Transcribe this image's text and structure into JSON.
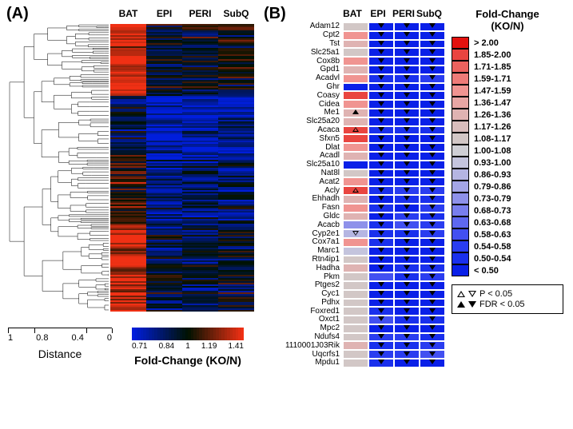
{
  "panel_labels": {
    "A": "(A)",
    "B": "(B)"
  },
  "panelA": {
    "columns": [
      "BAT",
      "EPI",
      "PERI",
      "SubQ"
    ],
    "heatmap_rows": 180,
    "colorscale": {
      "ticks": [
        "0.71",
        "0.84",
        "1",
        "1.19",
        "1.41"
      ],
      "colors": [
        "#0012c1",
        "#0034d8",
        "#0b0b5e",
        "#000000",
        "#530909",
        "#c21414",
        "#f03030"
      ],
      "label": "Fold-Change (KO/N)"
    },
    "distance": {
      "ticks": [
        "1",
        "0.8",
        "0.4",
        "0"
      ],
      "label": "Distance"
    }
  },
  "panelB": {
    "columns": [
      "BAT",
      "EPI",
      "PERI",
      "SubQ"
    ],
    "genes": [
      "Adam12",
      "Cpt2",
      "Tst",
      "Slc25a1",
      "Cox8b",
      "Gpd1",
      "Acadvl",
      "Ghr",
      "Coasy",
      "Cidea",
      "Me1",
      "Slc25a20",
      "Acaca",
      "Sfxn5",
      "Dlat",
      "Acadl",
      "Slc25a10",
      "Nat8l",
      "Acat2",
      "Acly",
      "Ehhadh",
      "Fasn",
      "Gldc",
      "Acacb",
      "Cyp2e1",
      "Cox7a1",
      "Marc1",
      "Rtn4ip1",
      "Hadha",
      "Pkm",
      "Ptges2",
      "Cyc1",
      "Pdhx",
      "Foxred1",
      "Oxct1",
      "Mpc2",
      "Ndufs4",
      "1110001J03Rik",
      "Uqcrfs1",
      "Mpdu1"
    ],
    "bat_bins": [
      6,
      8,
      7,
      6,
      8,
      7,
      8,
      0,
      9,
      8,
      7,
      7,
      9,
      9,
      8,
      7,
      0,
      6,
      8,
      9,
      7,
      8,
      7,
      3,
      4,
      8,
      5,
      6,
      7,
      6,
      6,
      6,
      6,
      6,
      6,
      6,
      6,
      7,
      6,
      6
    ],
    "wat_bins": {
      "EPI": [
        0,
        0,
        0,
        0,
        0,
        0,
        1,
        0,
        0,
        0,
        0,
        0,
        1,
        0,
        0,
        0,
        0,
        0,
        0,
        1,
        0,
        1,
        0,
        1,
        1,
        1,
        0,
        0,
        0,
        3,
        0,
        0,
        0,
        1,
        3,
        0,
        2,
        1,
        2,
        1
      ],
      "PERI": [
        0,
        0,
        0,
        0,
        0,
        0,
        1,
        0,
        0,
        0,
        0,
        0,
        1,
        0,
        0,
        0,
        0,
        0,
        0,
        2,
        1,
        0,
        2,
        3,
        1,
        0,
        0,
        0,
        1,
        1,
        0,
        0,
        0,
        0,
        1,
        0,
        2,
        1,
        2,
        0
      ],
      "SubQ": [
        0,
        0,
        0,
        0,
        0,
        0,
        2,
        0,
        0,
        0,
        0,
        0,
        1,
        0,
        0,
        0,
        0,
        0,
        0,
        2,
        1,
        2,
        1,
        2,
        2,
        0,
        0,
        0,
        1,
        2,
        0,
        0,
        0,
        0,
        1,
        0,
        1,
        2,
        3,
        0
      ]
    },
    "markers": {
      "BAT": {
        "10": "uf",
        "12": "uo",
        "19": "uo",
        "24": "do"
      },
      "EPI": {
        "0": "df",
        "1": "df",
        "2": "df",
        "3": "df",
        "4": "df",
        "5": "df",
        "6": "df",
        "7": "df",
        "8": "df",
        "9": "df",
        "10": "df",
        "11": "df",
        "12": "df",
        "13": "df",
        "14": "df",
        "15": "df",
        "16": "df",
        "17": "df",
        "18": "df",
        "19": "df",
        "20": "df",
        "21": "df",
        "22": "df",
        "23": "df",
        "24": "df",
        "25": "df",
        "26": "df",
        "27": "df",
        "28": "df",
        "30": "df",
        "31": "df",
        "32": "df",
        "33": "df",
        "34": "df",
        "35": "df",
        "36": "df",
        "37": "df",
        "38": "df",
        "39": "df"
      },
      "PERI": {
        "0": "df",
        "1": "df",
        "2": "df",
        "3": "df",
        "4": "df",
        "5": "df",
        "6": "df",
        "7": "df",
        "8": "df",
        "9": "df",
        "10": "df",
        "11": "df",
        "12": "df",
        "13": "df",
        "14": "df",
        "15": "df",
        "16": "df",
        "17": "df",
        "18": "df",
        "19": "df",
        "20": "df",
        "21": "df",
        "22": "df",
        "23": "df",
        "24": "df",
        "25": "df",
        "26": "df",
        "27": "df",
        "28": "df",
        "29": "df",
        "30": "df",
        "31": "df",
        "32": "df",
        "33": "df",
        "34": "df",
        "35": "df",
        "36": "df",
        "37": "df",
        "38": "df",
        "39": "df"
      },
      "SubQ": {
        "0": "df",
        "1": "df",
        "2": "df",
        "3": "df",
        "4": "df",
        "5": "df",
        "6": "df",
        "7": "df",
        "8": "df",
        "9": "df",
        "10": "df",
        "11": "df",
        "12": "df",
        "13": "df",
        "14": "df",
        "15": "df",
        "16": "df",
        "17": "df",
        "18": "df",
        "19": "df",
        "20": "df",
        "21": "df",
        "22": "df",
        "23": "df",
        "24": "df",
        "25": "df",
        "26": "df",
        "27": "df",
        "28": "df",
        "29": "df",
        "30": "df",
        "31": "df",
        "32": "df",
        "33": "df",
        "34": "df",
        "35": "df",
        "36": "df",
        "37": "df",
        "38": "df",
        "39": "df"
      }
    }
  },
  "legendB": {
    "title1": "Fold-Change",
    "title2": "(KO/N)",
    "bins": [
      {
        "color": "#e3110e",
        "label": "> 2.00"
      },
      {
        "color": "#e94540",
        "label": "1.85-2.00"
      },
      {
        "color": "#ec625e",
        "label": "1.71-1.85"
      },
      {
        "color": "#ee7b78",
        "label": "1.59-1.71"
      },
      {
        "color": "#f09491",
        "label": "1.47-1.59"
      },
      {
        "color": "#e8a6a4",
        "label": "1.36-1.47"
      },
      {
        "color": "#dfb3b2",
        "label": "1.26-1.36"
      },
      {
        "color": "#d8bdbc",
        "label": "1.17-1.26"
      },
      {
        "color": "#d2c7c6",
        "label": "1.08-1.17"
      },
      {
        "color": "#cfcfd5",
        "label": "1.00-1.08"
      },
      {
        "color": "#c4c4dd",
        "label": "0.93-1.00"
      },
      {
        "color": "#b5b5e2",
        "label": "0.86-0.93"
      },
      {
        "color": "#a4a5e6",
        "label": "0.79-0.86"
      },
      {
        "color": "#8e91ea",
        "label": "0.73-0.79"
      },
      {
        "color": "#787eee",
        "label": "0.68-0.73"
      },
      {
        "color": "#5e68f0",
        "label": "0.63-0.68"
      },
      {
        "color": "#4250f1",
        "label": "0.58-0.63"
      },
      {
        "color": "#2a3df0",
        "label": "0.54-0.58"
      },
      {
        "color": "#1a30ed",
        "label": "0.50-0.54"
      },
      {
        "color": "#0a20e8",
        "label": "< 0.50"
      }
    ],
    "sig": {
      "p": "P < 0.05",
      "fdr": "FDR < 0.05"
    }
  },
  "style": {
    "panelA_palette_low": "#0012c1",
    "panelA_palette_mid": "#000000",
    "panelA_palette_high": "#f03030"
  }
}
